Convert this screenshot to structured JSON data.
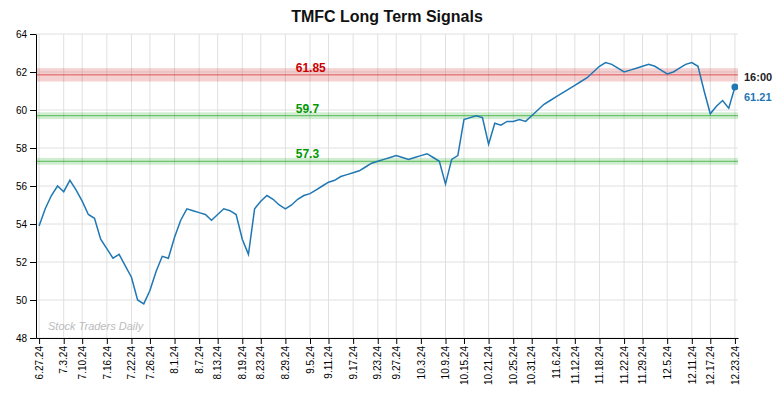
{
  "chart_data": {
    "type": "line",
    "title": "TMFC Long Term Signals",
    "categories": [
      "6.27.24",
      null,
      null,
      null,
      "7.3.24",
      null,
      null,
      "7.10.24",
      null,
      null,
      null,
      "7.16.24",
      null,
      null,
      null,
      "7.22.24",
      null,
      null,
      "7.26.24",
      null,
      null,
      null,
      "8.1.24",
      null,
      null,
      null,
      "8.7.24",
      null,
      null,
      "8.13.24",
      null,
      null,
      null,
      "8.19.24",
      null,
      null,
      "8.23.24",
      null,
      null,
      null,
      "8.29.24",
      null,
      null,
      null,
      "9.5.24",
      null,
      null,
      "9.11.24",
      null,
      null,
      null,
      "9.17.24",
      null,
      null,
      null,
      "9.23.24",
      null,
      null,
      "9.27.24",
      null,
      null,
      null,
      "10.3.24",
      null,
      null,
      null,
      "10.9.24",
      null,
      null,
      "10.15.24",
      null,
      null,
      null,
      "10.21.24",
      null,
      null,
      null,
      "10.25.24",
      null,
      null,
      "10.31.24",
      null,
      null,
      null,
      "11.6.24",
      null,
      null,
      "11.12.24",
      null,
      null,
      null,
      "11.18.24",
      null,
      null,
      null,
      "11.22.24",
      null,
      null,
      "11.29.24",
      null,
      null,
      null,
      "12.5.24",
      null,
      null,
      null,
      "12.11.24",
      null,
      null,
      "12.17.24",
      null,
      null,
      null,
      "12.23.24"
    ],
    "values": [
      53.9,
      54.8,
      55.5,
      56.0,
      55.7,
      56.3,
      55.8,
      55.2,
      54.5,
      54.3,
      53.2,
      52.7,
      52.2,
      52.4,
      51.8,
      51.2,
      50.0,
      49.8,
      50.5,
      51.5,
      52.3,
      52.2,
      53.3,
      54.2,
      54.8,
      54.7,
      54.6,
      54.5,
      54.2,
      54.5,
      54.8,
      54.7,
      54.5,
      53.2,
      52.4,
      54.8,
      55.2,
      55.5,
      55.3,
      55.0,
      54.8,
      55.0,
      55.3,
      55.5,
      55.6,
      55.8,
      56.0,
      56.2,
      56.3,
      56.5,
      56.6,
      56.7,
      56.8,
      57.0,
      57.2,
      57.3,
      57.4,
      57.5,
      57.6,
      57.5,
      57.4,
      57.5,
      57.6,
      57.7,
      57.5,
      57.3,
      56.1,
      57.4,
      57.6,
      59.5,
      59.6,
      59.7,
      59.6,
      58.2,
      59.3,
      59.2,
      59.4,
      59.4,
      59.5,
      59.4,
      59.7,
      60.0,
      60.3,
      60.5,
      60.7,
      60.9,
      61.1,
      61.3,
      61.5,
      61.7,
      62.0,
      62.3,
      62.5,
      62.4,
      62.2,
      62.0,
      62.1,
      62.2,
      62.3,
      62.4,
      62.3,
      62.1,
      61.9,
      62.0,
      62.2,
      62.4,
      62.5,
      62.3,
      61.0,
      59.8,
      60.2,
      60.5,
      60.1,
      61.21
    ],
    "ylim": [
      48,
      64
    ],
    "yticks": [
      48,
      50,
      52,
      54,
      56,
      58,
      60,
      62,
      64
    ],
    "grid": true,
    "hlines": [
      {
        "value": 61.85,
        "band_half": 0.35,
        "label": "61.85",
        "color": "#cc0000"
      },
      {
        "value": 59.7,
        "band_half": 0.18,
        "label": "59.7",
        "color": "#009900"
      },
      {
        "value": 57.3,
        "band_half": 0.18,
        "label": "57.3",
        "color": "#009900"
      }
    ],
    "annotations": [
      {
        "text": "16:00"
      },
      {
        "text": "61.21",
        "value": 61.21
      }
    ],
    "watermark": "Stock Traders Daily"
  }
}
